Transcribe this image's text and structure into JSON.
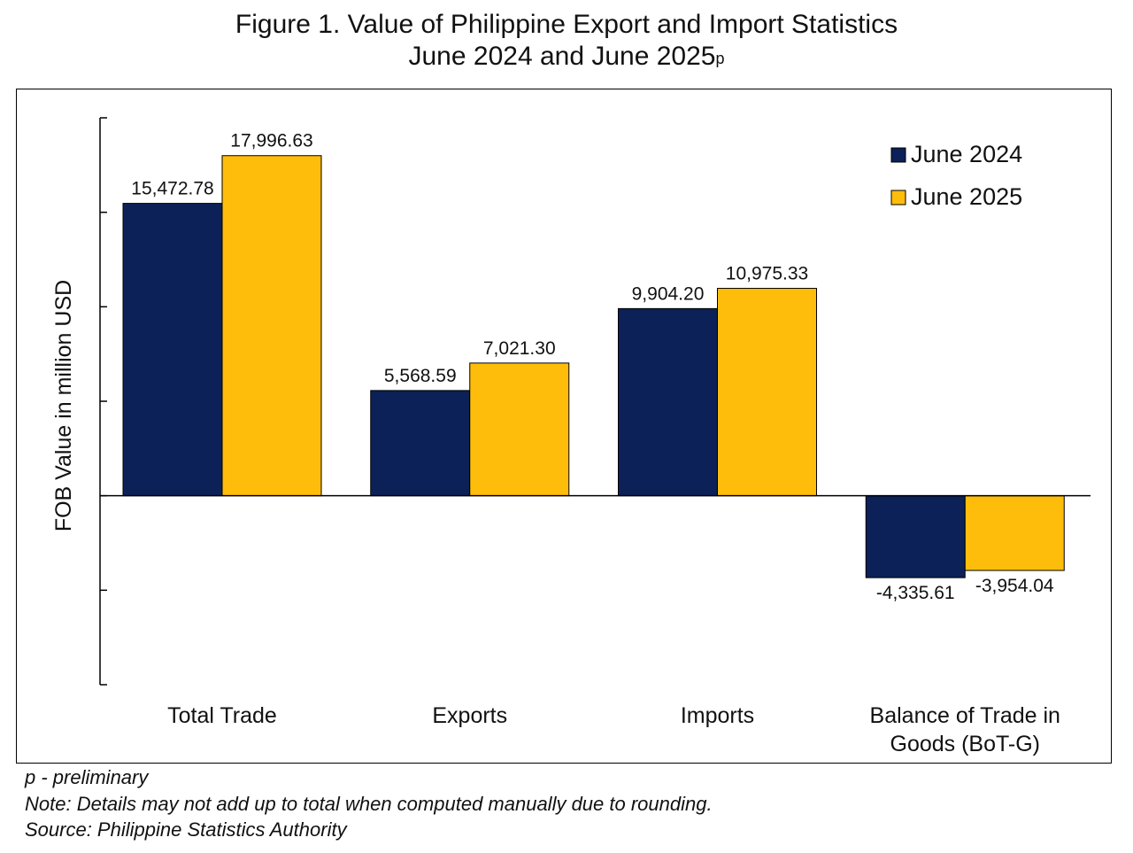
{
  "title_line1": "Figure 1. Value of Philippine Export and Import Statistics",
  "title_line2": "June 2024 and June 2025",
  "title_superscript": "p",
  "colors": {
    "june_2024": "#0b2157",
    "june_2025": "#fdbd0a"
  },
  "chart_data": {
    "type": "bar",
    "title": "Figure 1. Value of Philippine Export and Import Statistics June 2024 and June 2025p",
    "ylabel": "FOB Value in million USD",
    "xlabel": "",
    "categories": [
      "Total Trade",
      "Exports",
      "Imports",
      "Balance of Trade in Goods (BoT-G)"
    ],
    "category_lines": [
      [
        "Total Trade"
      ],
      [
        "Exports"
      ],
      [
        "Imports"
      ],
      [
        "Balance of Trade in",
        "Goods (BoT-G)"
      ]
    ],
    "series": [
      {
        "name": "June 2024",
        "values": [
          15472.78,
          5568.59,
          9904.2,
          -4335.61
        ],
        "labels": [
          "15,472.78",
          "5,568.59",
          "9,904.20",
          "-4,335.61"
        ]
      },
      {
        "name": "June 2025",
        "values": [
          17996.63,
          7021.3,
          10975.33,
          -3954.04
        ],
        "labels": [
          "17,996.63",
          "7,021.30",
          "10,975.33",
          "-3,954.04"
        ]
      }
    ],
    "ylim": [
      -10000,
      20000
    ],
    "y_ticks_shown": false,
    "grid": false,
    "legend": "top-right"
  },
  "footnotes": [
    "p - preliminary",
    "Note: Details may not add up to total when computed manually due to rounding.",
    "Source: Philippine Statistics Authority"
  ]
}
